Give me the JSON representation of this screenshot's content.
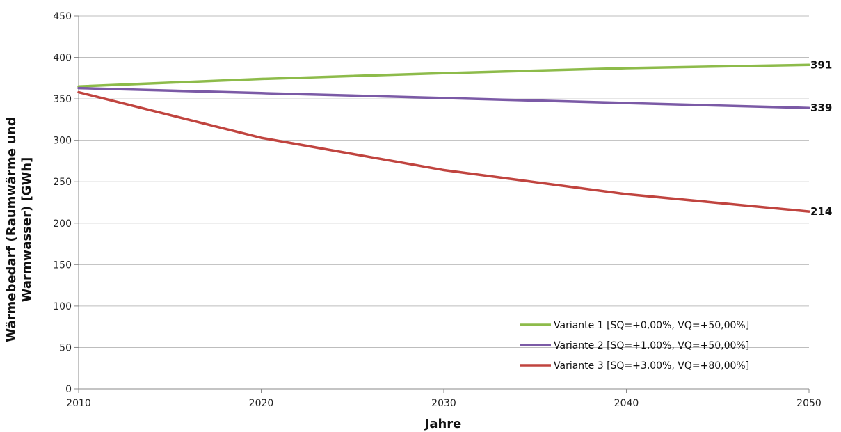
{
  "chart_data": {
    "type": "line",
    "xlabel": "Jahre",
    "ylabel_lines": [
      "Wärmebedarf (Raumwärme und",
      "Warmwasser)  [GWh]"
    ],
    "x_ticks": [
      "2010",
      "2020",
      "2030",
      "2040",
      "2050"
    ],
    "y_ticks": [
      "0",
      "50",
      "100",
      "150",
      "200",
      "250",
      "300",
      "350",
      "400",
      "450"
    ],
    "xlim": [
      2010,
      2050
    ],
    "ylim": [
      0,
      450
    ],
    "grid": "horizontal",
    "legend_position": "bottom-right",
    "series": [
      {
        "name": "Variante 1 [SQ=+0,00%, VQ=+50,00%]",
        "color": "#8dbb4a",
        "points": [
          [
            2010,
            365
          ],
          [
            2020,
            374
          ],
          [
            2030,
            381
          ],
          [
            2040,
            387
          ],
          [
            2050,
            391
          ]
        ],
        "end_label": "391"
      },
      {
        "name": "Variante 2 [SQ=+1,00%, VQ=+50,00%]",
        "color": "#7b5aa6",
        "points": [
          [
            2010,
            363
          ],
          [
            2020,
            357
          ],
          [
            2030,
            351
          ],
          [
            2040,
            345
          ],
          [
            2050,
            339
          ]
        ],
        "end_label": "339"
      },
      {
        "name": "Variante 3 [SQ=+3,00%, VQ=+80,00%]",
        "color": "#c0443f",
        "points": [
          [
            2010,
            358
          ],
          [
            2020,
            303
          ],
          [
            2030,
            264
          ],
          [
            2040,
            235
          ],
          [
            2050,
            214
          ]
        ],
        "end_label": "214"
      }
    ]
  }
}
